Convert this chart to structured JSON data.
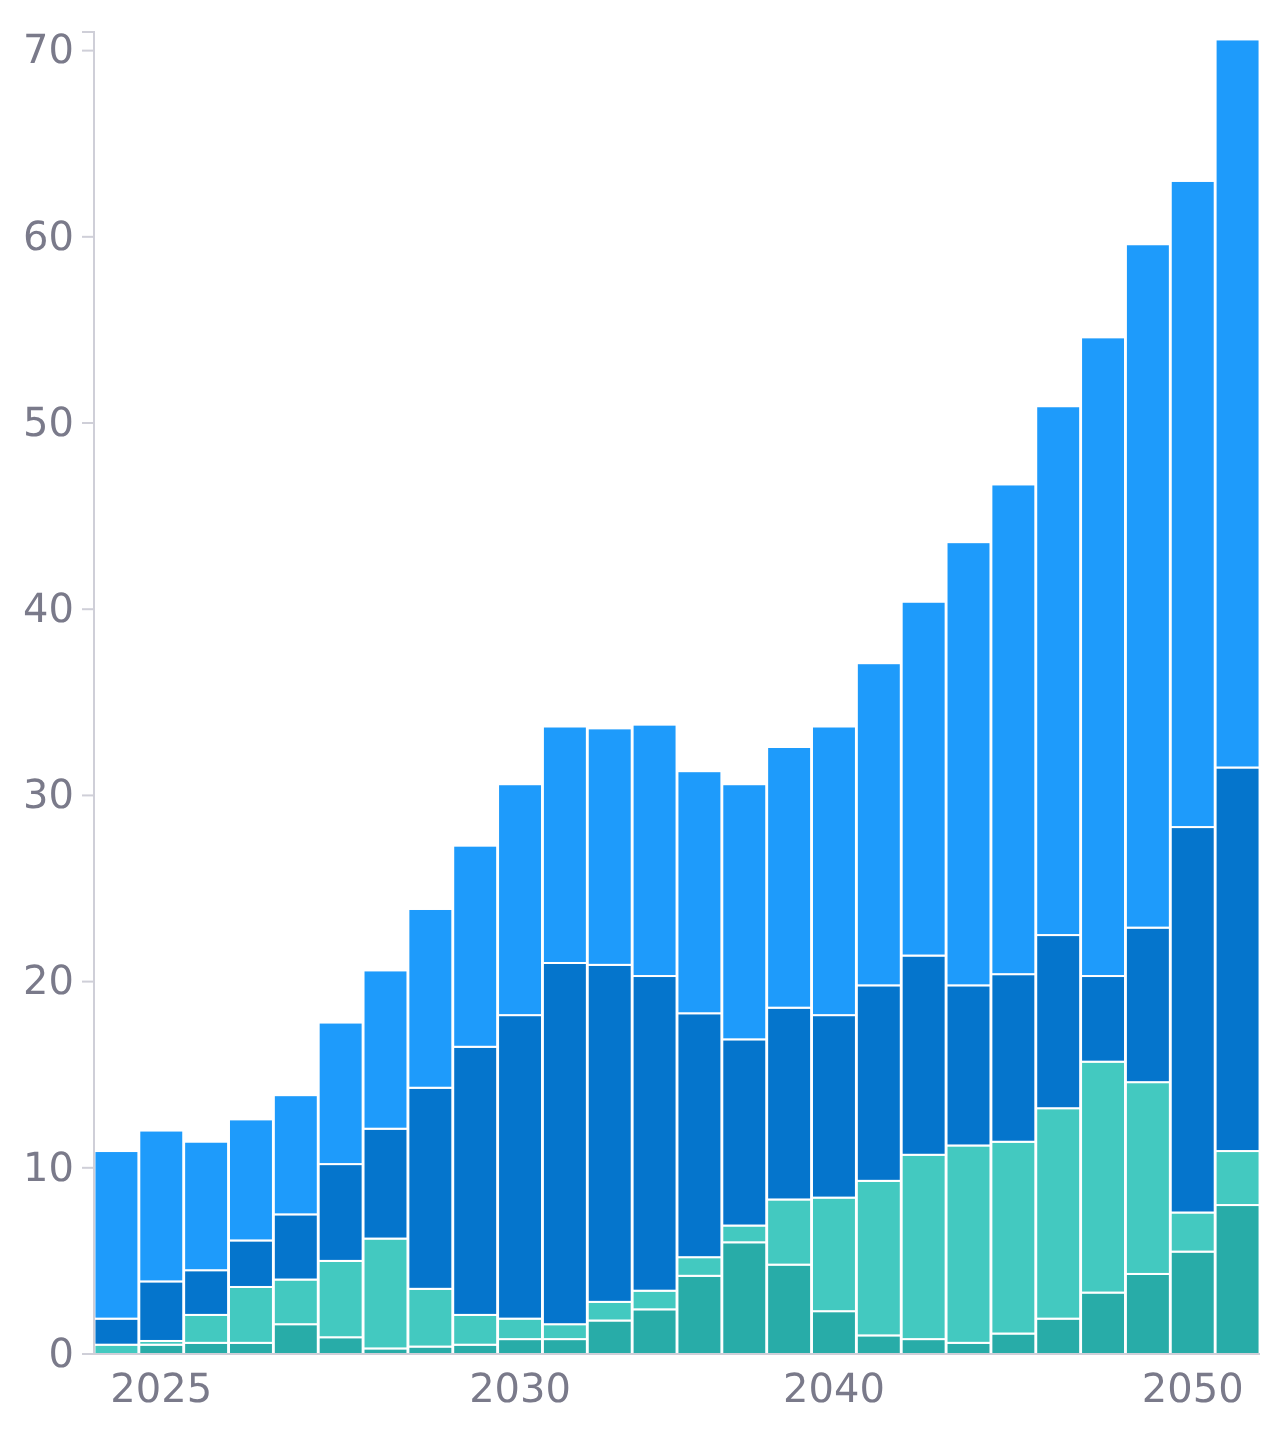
{
  "chart_data": {
    "type": "bar",
    "stacked": true,
    "categories": [
      null,
      "2025",
      null,
      null,
      null,
      null,
      null,
      null,
      null,
      "2030",
      null,
      null,
      null,
      null,
      null,
      null,
      "2040",
      null,
      null,
      null,
      null,
      null,
      null,
      null,
      "2050",
      null
    ],
    "series": [
      {
        "color": "#28aca8",
        "values": [
          0,
          0.5,
          0.6,
          0.6,
          1.6,
          0.9,
          0.3,
          0.4,
          0.5,
          0.8,
          0.8,
          1.8,
          2.4,
          4.2,
          6.0,
          4.8,
          2.3,
          1.0,
          0.8,
          0.6,
          1.1,
          1.9,
          3.3,
          4.3,
          5.5,
          8.0
        ]
      },
      {
        "color": "#43c9c0",
        "values": [
          0.5,
          0.2,
          1.5,
          3.0,
          2.4,
          4.1,
          5.9,
          3.1,
          1.6,
          1.1,
          0.8,
          1.0,
          1.0,
          1.0,
          0.9,
          3.5,
          6.1,
          8.3,
          9.9,
          10.6,
          10.3,
          11.3,
          12.4,
          10.3,
          2.1,
          2.9
        ]
      },
      {
        "color": "#0575cc",
        "values": [
          1.4,
          3.2,
          2.4,
          2.5,
          3.5,
          5.2,
          5.9,
          10.8,
          14.4,
          16.3,
          19.4,
          18.1,
          16.9,
          13.1,
          10.0,
          10.3,
          9.8,
          10.5,
          10.7,
          8.6,
          9.0,
          9.3,
          4.6,
          8.3,
          20.7,
          20.6
        ]
      },
      {
        "color": "#1e9bfb",
        "values": [
          9.0,
          8.1,
          6.9,
          6.5,
          6.4,
          7.6,
          8.5,
          9.6,
          10.8,
          12.4,
          12.7,
          12.7,
          13.5,
          13.0,
          13.7,
          14.0,
          15.5,
          17.3,
          19.0,
          23.8,
          26.3,
          28.4,
          34.3,
          36.7,
          34.7,
          39.1
        ]
      }
    ],
    "ylim": [
      0,
      71
    ],
    "yticks": [
      0,
      10,
      20,
      30,
      40,
      50,
      60,
      70
    ],
    "grid": false
  }
}
